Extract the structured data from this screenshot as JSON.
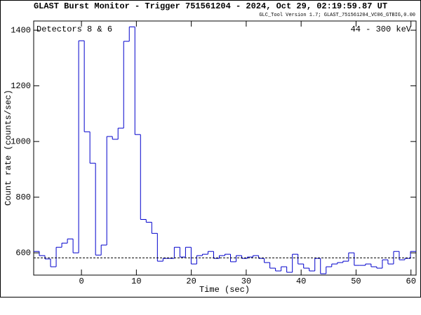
{
  "chart_data": {
    "type": "histogram",
    "title": "GLAST Burst Monitor  -  Trigger 751561204  -  2024, Oct 29, 02:19:59.87 UT",
    "subtitle": "GLC_Tool Version 1.7; GLAST_751561204_VC06_GTBIG,0.00",
    "annotations": [
      "Detectors 8 & 6",
      "44 - 300 keV"
    ],
    "x_label": "Time (sec)",
    "y_label": "Count rate (counts/sec)",
    "color": "#0000cc",
    "bins": [
      -8.7,
      -7.676,
      -6.652,
      -5.628,
      -4.604,
      -3.58,
      -2.556,
      -1.532,
      -0.508,
      0.516,
      1.54,
      2.564,
      3.588,
      4.612,
      5.636,
      6.66,
      7.684,
      8.708,
      9.732,
      10.756,
      11.78,
      12.804,
      13.828,
      14.852,
      15.876,
      16.9,
      17.924,
      18.948,
      19.972,
      20.996,
      22.02,
      23.044,
      24.068,
      25.092,
      26.116,
      27.14,
      28.164,
      29.188,
      30.212,
      31.236,
      32.26,
      33.284,
      34.308,
      35.332,
      36.356,
      37.38,
      38.404,
      39.428,
      40.452,
      41.476,
      42.5,
      43.524,
      44.548,
      45.572,
      46.596,
      47.62,
      48.644,
      49.668,
      50.692,
      51.716,
      52.74,
      53.764,
      54.788,
      55.812,
      56.836,
      57.86,
      58.884,
      59.908,
      60.932
    ],
    "values": [
      605,
      590,
      578,
      550,
      620,
      635,
      650,
      600,
      1362,
      1035,
      922,
      592,
      628,
      1018,
      1008,
      1048,
      1360,
      1412,
      1025,
      720,
      710,
      670,
      570,
      580,
      580,
      620,
      585,
      620,
      560,
      590,
      595,
      605,
      580,
      590,
      595,
      568,
      590,
      580,
      585,
      590,
      580,
      565,
      545,
      535,
      550,
      530,
      595,
      560,
      545,
      535,
      580,
      525,
      550,
      560,
      565,
      570,
      600,
      555,
      555,
      560,
      550,
      545,
      575,
      560,
      605,
      575,
      580,
      605
    ],
    "background": 582,
    "xlim": [
      -8.7,
      60.932
    ],
    "ylim": [
      520,
      1433
    ],
    "xticks": [
      0,
      10,
      20,
      30,
      40,
      50,
      60
    ],
    "yticks": [
      600,
      800,
      1000,
      1200,
      1400
    ]
  }
}
